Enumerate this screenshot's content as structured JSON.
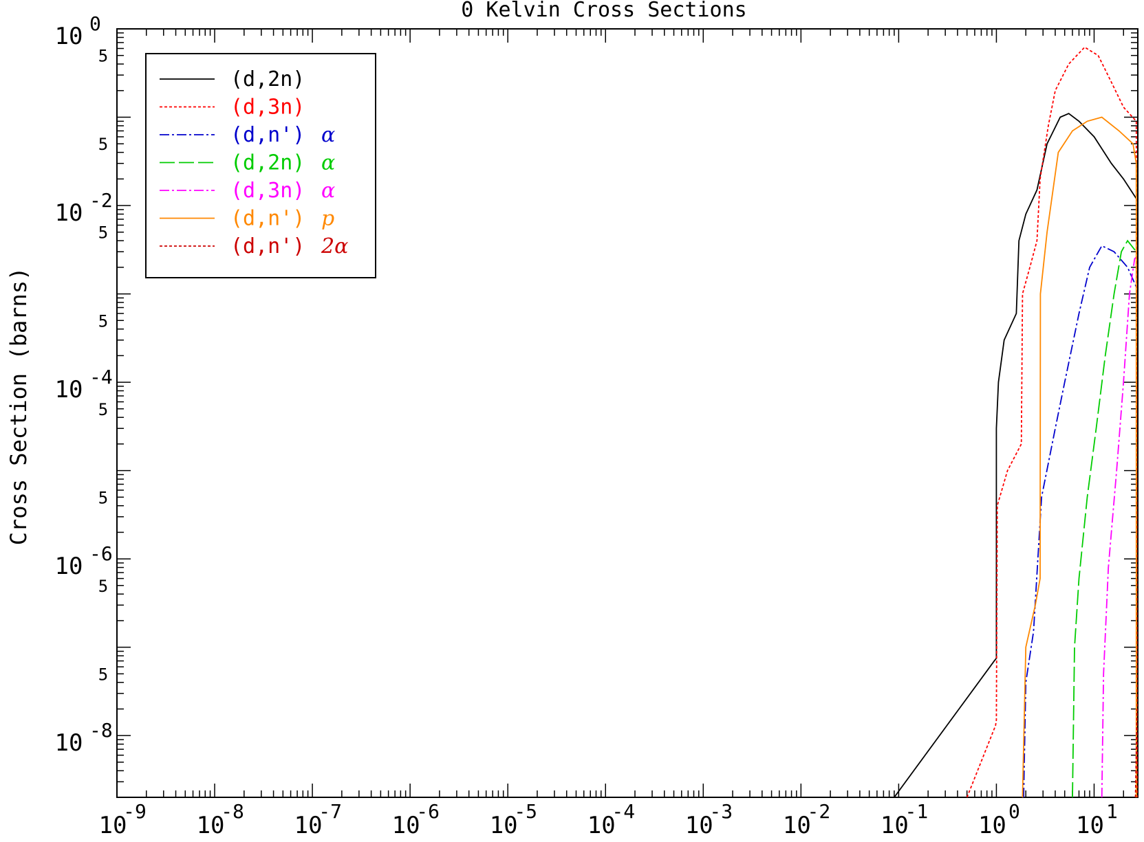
{
  "chart_data": {
    "type": "line",
    "title": "0 Kelvin Cross Sections",
    "xlabel": "",
    "ylabel": "Cross Section (barns)",
    "xscale": "log",
    "yscale": "log",
    "xlim": [
      1e-09,
      28
    ],
    "ylim": [
      2e-09,
      1
    ],
    "x_ticks": [
      {
        "value": 1e-09,
        "base": "10",
        "exp": "-9"
      },
      {
        "value": 1e-08,
        "base": "10",
        "exp": "-8"
      },
      {
        "value": 1e-07,
        "base": "10",
        "exp": "-7"
      },
      {
        "value": 1e-06,
        "base": "10",
        "exp": "-6"
      },
      {
        "value": 1e-05,
        "base": "10",
        "exp": "-5"
      },
      {
        "value": 0.0001,
        "base": "10",
        "exp": "-4"
      },
      {
        "value": 0.001,
        "base": "10",
        "exp": "-3"
      },
      {
        "value": 0.01,
        "base": "10",
        "exp": "-2"
      },
      {
        "value": 0.1,
        "base": "10",
        "exp": "-1"
      },
      {
        "value": 1,
        "base": "10",
        "exp": "0"
      },
      {
        "value": 10,
        "base": "10",
        "exp": "1"
      }
    ],
    "y_ticks": [
      {
        "value": 1e-08,
        "base": "10",
        "exp": "-8"
      },
      {
        "value": 1e-06,
        "base": "10",
        "exp": "-6"
      },
      {
        "value": 0.0001,
        "base": "10",
        "exp": "-4"
      },
      {
        "value": 0.01,
        "base": "10",
        "exp": "-2"
      },
      {
        "value": 1,
        "base": "10",
        "exp": "0"
      }
    ],
    "y_minor_labels": [
      {
        "value": 5e-08,
        "label": "5"
      },
      {
        "value": 5e-07,
        "label": "5"
      },
      {
        "value": 5e-06,
        "label": "5"
      },
      {
        "value": 5e-05,
        "label": "5"
      },
      {
        "value": 0.0005,
        "label": "5"
      },
      {
        "value": 0.005,
        "label": "5"
      },
      {
        "value": 0.05,
        "label": "5"
      },
      {
        "value": 0.5,
        "label": "5"
      }
    ],
    "legend_position": "top-left",
    "grid": false,
    "series": [
      {
        "name": "(d,2n)",
        "greek": "",
        "color": "#000000",
        "dash": "solid",
        "points": [
          [
            0.09,
            2e-09
          ],
          [
            0.95,
            7e-08
          ],
          [
            1.0,
            7.5e-08
          ],
          [
            1.0,
            3e-05
          ],
          [
            1.05,
            0.0001
          ],
          [
            1.2,
            0.0003
          ],
          [
            1.6,
            0.0006
          ],
          [
            1.7,
            0.004
          ],
          [
            2.0,
            0.008
          ],
          [
            2.6,
            0.015
          ],
          [
            3.3,
            0.05
          ],
          [
            4.5,
            0.1
          ],
          [
            5.5,
            0.11
          ],
          [
            7.0,
            0.09
          ],
          [
            10,
            0.06
          ],
          [
            15,
            0.03
          ],
          [
            20,
            0.02
          ],
          [
            27,
            0.012
          ]
        ]
      },
      {
        "name": "(d,3n)",
        "greek": "",
        "color": "#ff0000",
        "dash": "4,3",
        "points": [
          [
            0.5,
            2e-09
          ],
          [
            0.98,
            1.3e-08
          ],
          [
            1.0,
            1.5e-08
          ],
          [
            1.02,
            4e-06
          ],
          [
            1.3,
            1e-05
          ],
          [
            1.8,
            2e-05
          ],
          [
            1.85,
            0.001
          ],
          [
            2.2,
            0.002
          ],
          [
            2.6,
            0.004
          ],
          [
            2.8,
            0.02
          ],
          [
            3.4,
            0.08
          ],
          [
            4.0,
            0.2
          ],
          [
            5.5,
            0.4
          ],
          [
            8.0,
            0.62
          ],
          [
            11,
            0.5
          ],
          [
            15,
            0.25
          ],
          [
            20,
            0.13
          ],
          [
            27,
            0.09
          ],
          [
            27.5,
            2e-09
          ]
        ]
      },
      {
        "name": "(d,n')",
        "greek": "α",
        "color": "#0000cc",
        "dash": "14,4,3,4",
        "points": [
          [
            1.9,
            2e-09
          ],
          [
            2.0,
            4e-08
          ],
          [
            2.4,
            1.5e-07
          ],
          [
            2.9,
            5e-06
          ],
          [
            4.0,
            3e-05
          ],
          [
            5.0,
            0.0001
          ],
          [
            7.0,
            0.0006
          ],
          [
            9.0,
            0.002
          ],
          [
            12,
            0.0035
          ],
          [
            16,
            0.003
          ],
          [
            22,
            0.002
          ],
          [
            27,
            0.0012
          ]
        ]
      },
      {
        "name": "(d,2n)",
        "greek": "α",
        "color": "#00cc00",
        "dash": "22,6",
        "points": [
          [
            6.0,
            2e-09
          ],
          [
            6.3,
            1e-07
          ],
          [
            7.0,
            6e-07
          ],
          [
            8.5,
            5e-06
          ],
          [
            10.5,
            3e-05
          ],
          [
            13,
            0.0002
          ],
          [
            16,
            0.001
          ],
          [
            19,
            0.003
          ],
          [
            22,
            0.004
          ],
          [
            27,
            0.003
          ]
        ]
      },
      {
        "name": "(d,3n)",
        "greek": "α",
        "color": "#ff00ff",
        "dash": "14,4,3,4",
        "points": [
          [
            12,
            2e-09
          ],
          [
            12.5,
            5e-08
          ],
          [
            14,
            8e-07
          ],
          [
            17,
            1e-05
          ],
          [
            20,
            0.0001
          ],
          [
            23,
            0.001
          ],
          [
            26,
            0.0025
          ],
          [
            27,
            0.0026
          ]
        ]
      },
      {
        "name": "(d,n')",
        "greek": "p",
        "color": "#ff8800",
        "dash": "solid",
        "points": [
          [
            1.85,
            2e-09
          ],
          [
            2.0,
            1e-07
          ],
          [
            2.5,
            3e-07
          ],
          [
            2.8,
            6e-07
          ],
          [
            2.82,
            0.001
          ],
          [
            3.3,
            0.005
          ],
          [
            4.3,
            0.04
          ],
          [
            6.0,
            0.07
          ],
          [
            8.5,
            0.09
          ],
          [
            12,
            0.1
          ],
          [
            18,
            0.07
          ],
          [
            25,
            0.05
          ],
          [
            27,
            0.03
          ],
          [
            27,
            2e-09
          ]
        ]
      },
      {
        "name": "(d,n')",
        "greek": "2α",
        "color": "#cc0000",
        "dash": "4,3",
        "points": [
          [
            26.5,
            2e-09
          ],
          [
            27.5,
            2e-08
          ]
        ]
      }
    ]
  }
}
